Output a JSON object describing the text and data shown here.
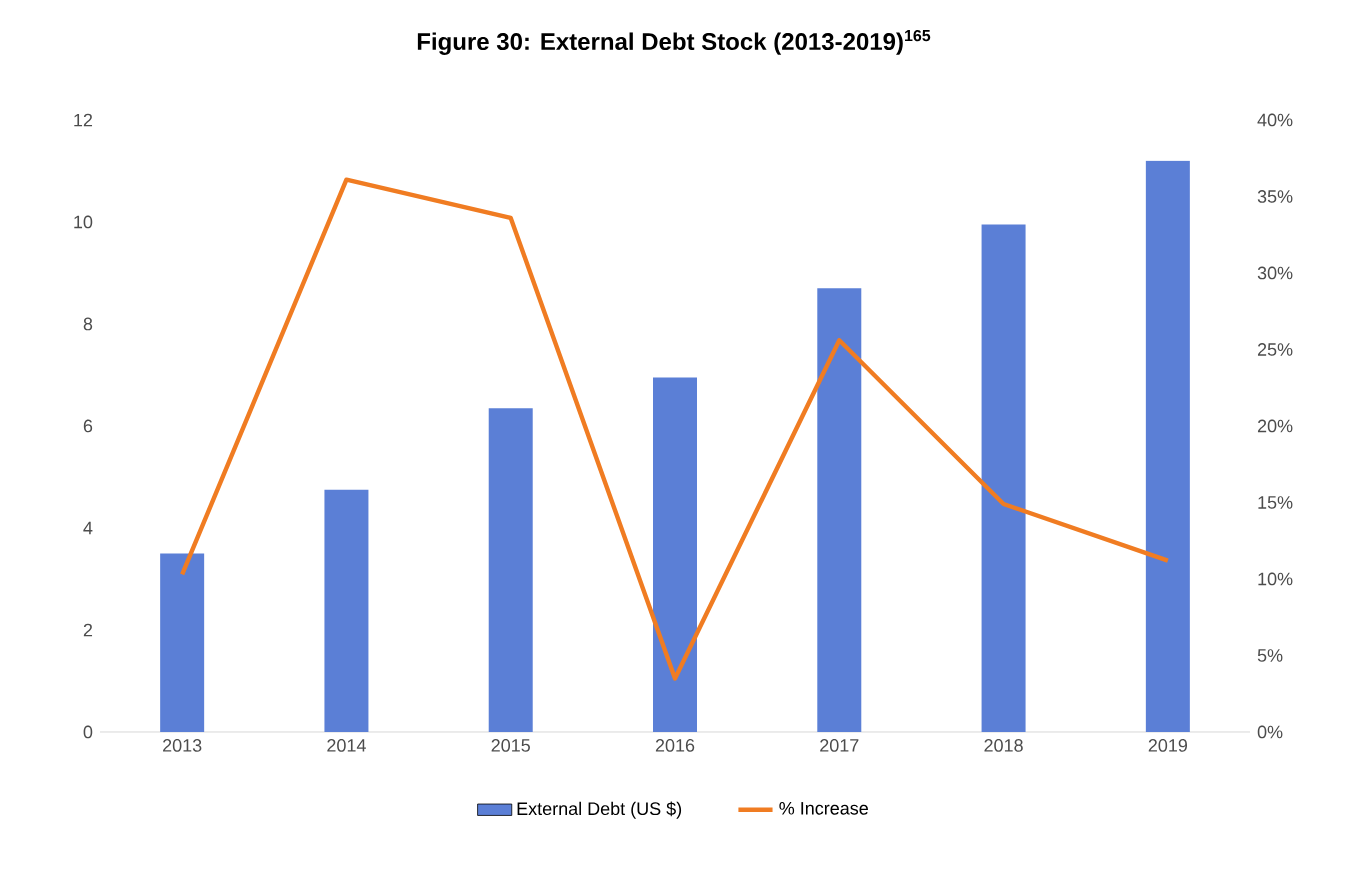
{
  "chart_data": {
    "type": "bar",
    "title": "Figure 30: External Debt Stock (2013-2019)$^{165}$",
    "categories": [
      "2013",
      "2014",
      "2015",
      "2016",
      "2017",
      "2018",
      "2019"
    ],
    "series": [
      {
        "name": "External Debt (US $)",
        "color": "#5b7fd6",
        "values": [
          3.5,
          4.75,
          6.35,
          6.95,
          8.7,
          9.95,
          11.2
        ]
      },
      {
        "name": "% Increase",
        "type": "line",
        "axis": "y2",
        "color": "#f07c22",
        "values": [
          10.3,
          36.1,
          33.6,
          3.5,
          25.6,
          14.9,
          11.2
        ]
      }
    ],
    "ylim": [
      0,
      12
    ],
    "yticks": [
      0,
      2,
      4,
      6,
      8,
      10,
      12
    ],
    "y2lim": [
      0,
      40
    ],
    "y2ticks": [
      {
        "value": 0,
        "label": "0%"
      },
      {
        "value": 5,
        "label": "5%"
      },
      {
        "value": 10,
        "label": "10%"
      },
      {
        "value": 15,
        "label": "15%"
      },
      {
        "value": 20,
        "label": "20%"
      },
      {
        "value": 25,
        "label": "25%"
      },
      {
        "value": 30,
        "label": "30%"
      },
      {
        "value": 35,
        "label": "35%"
      },
      {
        "value": 40,
        "label": "40%"
      }
    ],
    "legend": "bottom"
  }
}
